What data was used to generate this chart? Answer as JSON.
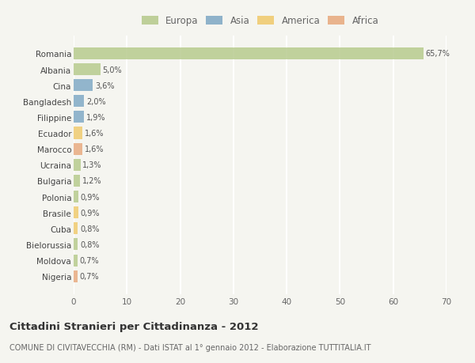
{
  "countries": [
    "Romania",
    "Albania",
    "Cina",
    "Bangladesh",
    "Filippine",
    "Ecuador",
    "Marocco",
    "Ucraina",
    "Bulgaria",
    "Polonia",
    "Brasile",
    "Cuba",
    "Bielorussia",
    "Moldova",
    "Nigeria"
  ],
  "values": [
    65.7,
    5.0,
    3.6,
    2.0,
    1.9,
    1.6,
    1.6,
    1.3,
    1.2,
    0.9,
    0.9,
    0.8,
    0.8,
    0.7,
    0.7
  ],
  "labels": [
    "65,7%",
    "5,0%",
    "3,6%",
    "2,0%",
    "1,9%",
    "1,6%",
    "1,6%",
    "1,3%",
    "1,2%",
    "0,9%",
    "0,9%",
    "0,8%",
    "0,8%",
    "0,7%",
    "0,7%"
  ],
  "continents": [
    "Europa",
    "Europa",
    "Asia",
    "Asia",
    "Asia",
    "America",
    "Africa",
    "Europa",
    "Europa",
    "Europa",
    "America",
    "America",
    "Europa",
    "Europa",
    "Africa"
  ],
  "colors": {
    "Europa": "#b5c98a",
    "Asia": "#7da7c4",
    "America": "#f0c96a",
    "Africa": "#e8a87c"
  },
  "legend_labels": [
    "Europa",
    "Asia",
    "America",
    "Africa"
  ],
  "legend_colors": [
    "#b5c98a",
    "#7da7c4",
    "#f0c96a",
    "#e8a87c"
  ],
  "title": "Cittadini Stranieri per Cittadinanza - 2012",
  "subtitle": "COMUNE DI CIVITAVECCHIA (RM) - Dati ISTAT al 1° gennaio 2012 - Elaborazione TUTTITALIA.IT",
  "xlim": [
    0,
    70
  ],
  "xticks": [
    0,
    10,
    20,
    30,
    40,
    50,
    60,
    70
  ],
  "bg_color": "#f5f5f0",
  "grid_color": "#ffffff",
  "bar_height": 0.75
}
